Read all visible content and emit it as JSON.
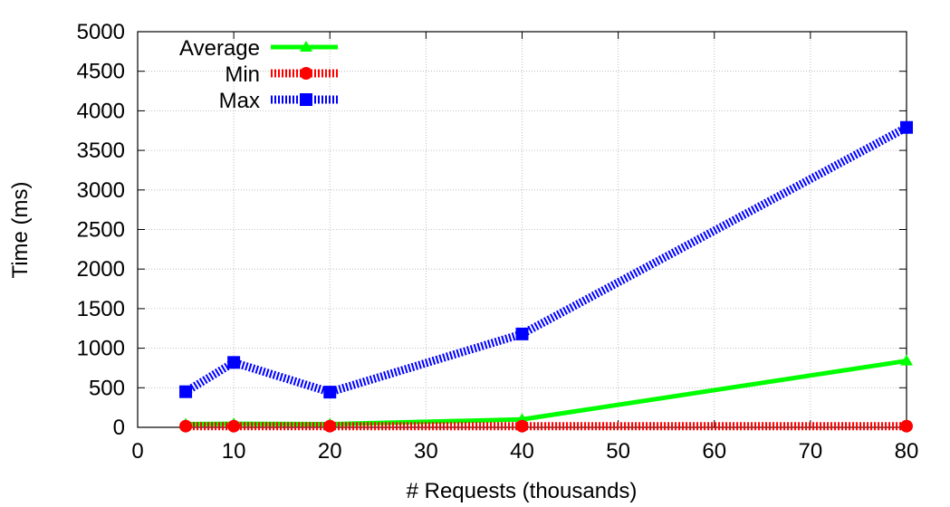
{
  "chart_data": {
    "type": "line",
    "xlabel": "# Requests (thousands)",
    "ylabel": "Time (ms)",
    "xlim": [
      0,
      80
    ],
    "ylim": [
      0,
      5000
    ],
    "xticks": [
      0,
      10,
      20,
      30,
      40,
      50,
      60,
      70,
      80
    ],
    "yticks": [
      0,
      500,
      1000,
      1500,
      2000,
      2500,
      3000,
      3500,
      4000,
      4500,
      5000
    ],
    "grid": true,
    "legend_position": "top-left",
    "x": [
      5,
      10,
      20,
      40,
      80
    ],
    "series": [
      {
        "name": "Average",
        "values": [
          40,
          45,
          40,
          100,
          840
        ],
        "color": "#00ff00",
        "marker": "triangle",
        "line": "solid"
      },
      {
        "name": "Min",
        "values": [
          15,
          15,
          15,
          15,
          15
        ],
        "color": "#ff0000",
        "marker": "circle",
        "line": "dashed"
      },
      {
        "name": "Max",
        "values": [
          450,
          820,
          445,
          1180,
          3790
        ],
        "color": "#0000ff",
        "marker": "square",
        "line": "dashed"
      }
    ]
  }
}
